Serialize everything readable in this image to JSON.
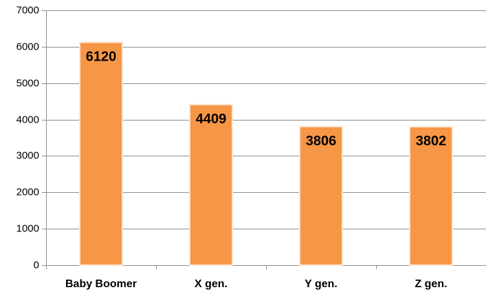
{
  "chart_data": {
    "type": "bar",
    "categories": [
      "Baby Boomer",
      "X gen.",
      "Y gen.",
      "Z gen."
    ],
    "values": [
      6120,
      4409,
      3806,
      3802
    ],
    "data_labels": [
      "6120",
      "4409",
      "3806",
      "3802"
    ],
    "y_ticks": [
      "0",
      "1000",
      "2000",
      "3000",
      "4000",
      "5000",
      "6000",
      "7000"
    ],
    "ylim": [
      0,
      7000
    ],
    "grid": true,
    "legend": "none",
    "bar_color": "#F79646",
    "bar_edge_color": "#FDE5D2",
    "gridline_color": "#8C8C8C"
  }
}
